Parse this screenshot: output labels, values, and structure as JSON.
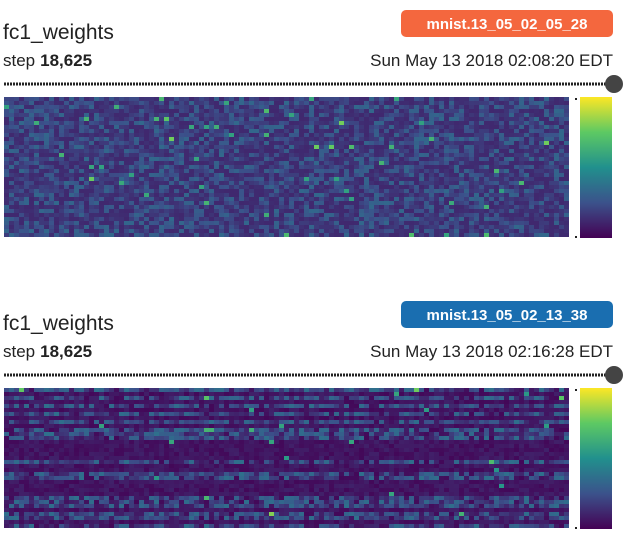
{
  "cards": [
    {
      "title": "fc1_weights",
      "step_label": "step",
      "step": "18,625",
      "time": "Sun May 13 2018 02:08:20 EDT",
      "run": "mnist.13_05_02_05_28",
      "run_color": "#f4673e"
    },
    {
      "title": "fc1_weights",
      "step_label": "step",
      "step": "18,625",
      "time": "Sun May 13 2018 02:16:28 EDT",
      "run": "mnist.13_05_02_13_38",
      "run_color": "#1a6eb0"
    }
  ]
}
